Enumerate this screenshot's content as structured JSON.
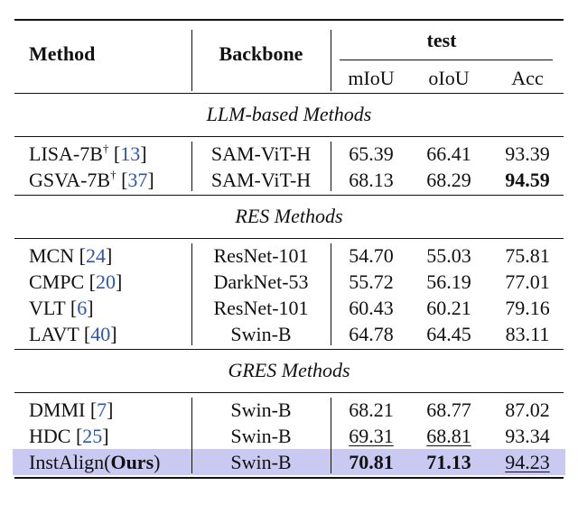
{
  "table": {
    "header": {
      "method": "Method",
      "backbone": "Backbone",
      "group": "test",
      "columns": [
        "mIoU",
        "oIoU",
        "Acc"
      ]
    },
    "sections": [
      {
        "title": "LLM-based Methods",
        "rows": [
          {
            "method": [
              {
                "text": "LISA-7B"
              },
              {
                "text": "†",
                "sup": true
              },
              {
                "text": " ["
              },
              {
                "text": "13",
                "link": true
              },
              {
                "text": "]"
              }
            ],
            "backbone": "SAM-ViT-H",
            "scores": [
              {
                "text": "65.39"
              },
              {
                "text": "66.41"
              },
              {
                "text": "93.39"
              }
            ]
          },
          {
            "method": [
              {
                "text": "GSVA-7B"
              },
              {
                "text": "†",
                "sup": true
              },
              {
                "text": " ["
              },
              {
                "text": "37",
                "link": true
              },
              {
                "text": "]"
              }
            ],
            "backbone": "SAM-ViT-H",
            "scores": [
              {
                "text": "68.13"
              },
              {
                "text": "68.29"
              },
              {
                "text": "94.59",
                "bold": true
              }
            ]
          }
        ]
      },
      {
        "title": "RES Methods",
        "rows": [
          {
            "method": [
              {
                "text": "MCN ["
              },
              {
                "text": "24",
                "link": true
              },
              {
                "text": "]"
              }
            ],
            "backbone": "ResNet-101",
            "scores": [
              {
                "text": "54.70"
              },
              {
                "text": "55.03"
              },
              {
                "text": "75.81"
              }
            ]
          },
          {
            "method": [
              {
                "text": "CMPC ["
              },
              {
                "text": "20",
                "link": true
              },
              {
                "text": "]"
              }
            ],
            "backbone": "DarkNet-53",
            "scores": [
              {
                "text": "55.72"
              },
              {
                "text": "56.19"
              },
              {
                "text": "77.01"
              }
            ]
          },
          {
            "method": [
              {
                "text": "VLT ["
              },
              {
                "text": "6",
                "link": true
              },
              {
                "text": "]"
              }
            ],
            "backbone": "ResNet-101",
            "scores": [
              {
                "text": "60.43"
              },
              {
                "text": "60.21"
              },
              {
                "text": "79.16"
              }
            ]
          },
          {
            "method": [
              {
                "text": "LAVT ["
              },
              {
                "text": "40",
                "link": true
              },
              {
                "text": "]"
              }
            ],
            "backbone": "Swin-B",
            "scores": [
              {
                "text": "64.78"
              },
              {
                "text": "64.45"
              },
              {
                "text": "83.11"
              }
            ]
          }
        ]
      },
      {
        "title": "GRES Methods",
        "rows": [
          {
            "method": [
              {
                "text": "DMMI ["
              },
              {
                "text": "7",
                "link": true
              },
              {
                "text": "]"
              }
            ],
            "backbone": "Swin-B",
            "scores": [
              {
                "text": "68.21"
              },
              {
                "text": "68.77"
              },
              {
                "text": "87.02"
              }
            ]
          },
          {
            "method": [
              {
                "text": "HDC ["
              },
              {
                "text": "25",
                "link": true
              },
              {
                "text": "]"
              }
            ],
            "backbone": "Swin-B",
            "scores": [
              {
                "text": "69.31",
                "underline": true
              },
              {
                "text": "68.81",
                "underline": true
              },
              {
                "text": "93.34"
              }
            ]
          },
          {
            "method": [
              {
                "text": "InstAlign("
              },
              {
                "text": "Ours",
                "bold": true
              },
              {
                "text": ")"
              }
            ],
            "backbone": "Swin-B",
            "highlight": true,
            "scores": [
              {
                "text": "70.81",
                "bold": true
              },
              {
                "text": "71.13",
                "bold": true
              },
              {
                "text": "94.23",
                "underline": true
              }
            ]
          }
        ]
      }
    ]
  }
}
